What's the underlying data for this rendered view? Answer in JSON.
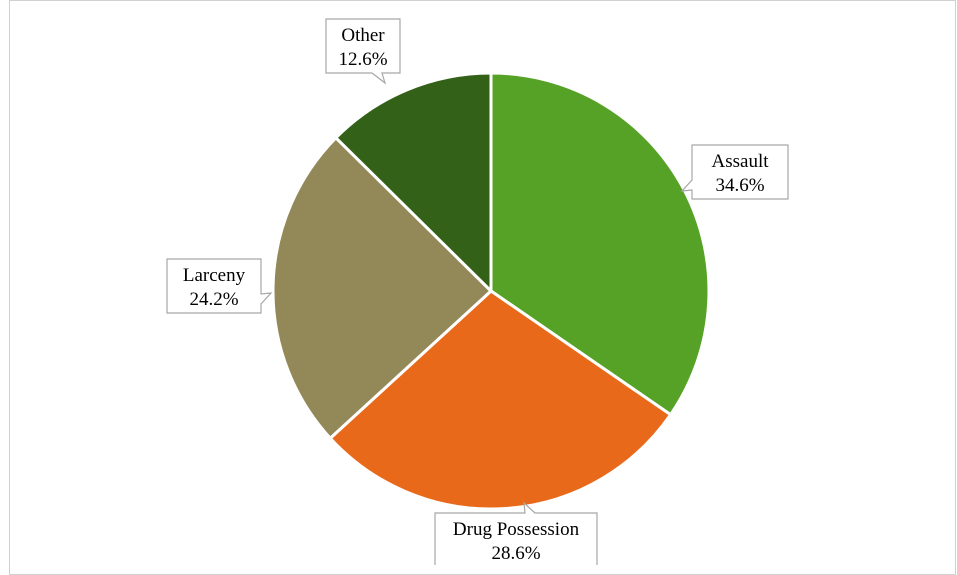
{
  "chart_data": {
    "type": "pie",
    "title": "",
    "slices": [
      {
        "name": "Assault",
        "value": 34.6,
        "label": "34.6%",
        "color": "#56a226"
      },
      {
        "name": "Drug Possession",
        "value": 28.6,
        "label": "28.6%",
        "color": "#e8691a"
      },
      {
        "name": "Larceny",
        "value": 24.2,
        "label": "24.2%",
        "color": "#938857"
      },
      {
        "name": "Other",
        "value": 12.6,
        "label": "12.6%",
        "color": "#336118"
      }
    ],
    "legend": "none",
    "label_style": "callout"
  }
}
